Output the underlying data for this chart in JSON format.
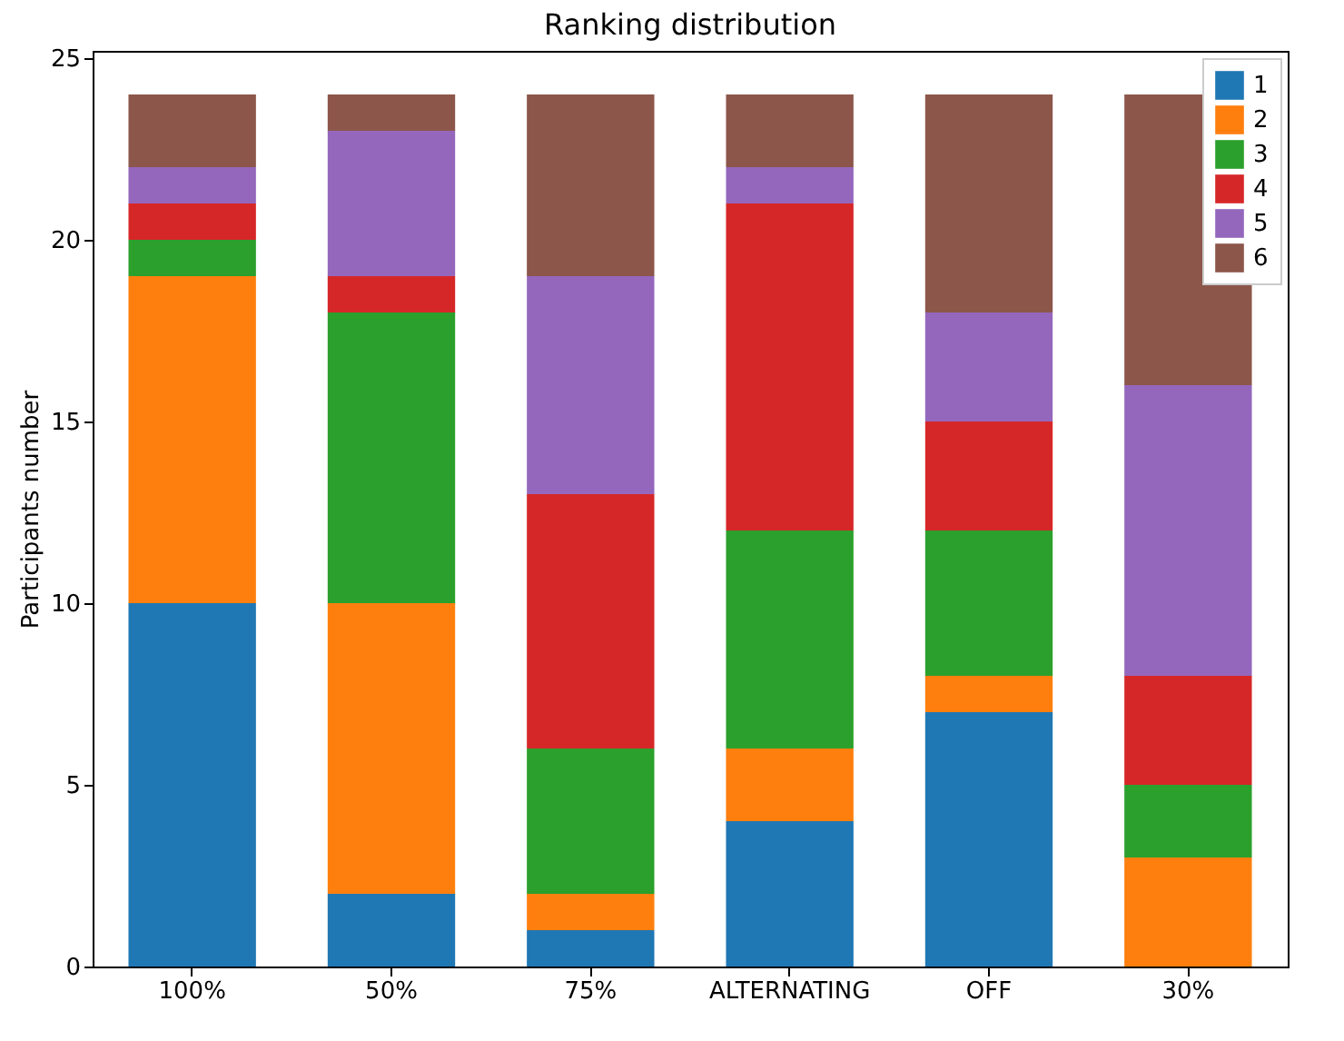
{
  "chart_data": {
    "type": "bar",
    "title": "Ranking distribution",
    "ylabel": "Participants number",
    "categories": [
      "100%",
      "50%",
      "75%",
      "ALTERNATING",
      "OFF",
      "30%"
    ],
    "stacked": true,
    "ylim": [
      0,
      25.2
    ],
    "yticks": [
      0,
      5,
      10,
      15,
      20,
      25
    ],
    "grid": false,
    "legend": "top right",
    "series": [
      {
        "name": "1",
        "color": "#1f77b4",
        "values": [
          10,
          2,
          1,
          4,
          7,
          0
        ]
      },
      {
        "name": "2",
        "color": "#ff7f0e",
        "values": [
          9,
          8,
          1,
          2,
          1,
          3
        ]
      },
      {
        "name": "3",
        "color": "#2ca02c",
        "values": [
          1,
          8,
          4,
          6,
          4,
          2
        ]
      },
      {
        "name": "4",
        "color": "#d62728",
        "values": [
          1,
          1,
          7,
          9,
          3,
          3
        ]
      },
      {
        "name": "5",
        "color": "#9467bd",
        "values": [
          1,
          4,
          6,
          1,
          3,
          8
        ]
      },
      {
        "name": "6",
        "color": "#8c564b",
        "values": [
          2,
          1,
          5,
          2,
          6,
          8
        ]
      }
    ]
  }
}
